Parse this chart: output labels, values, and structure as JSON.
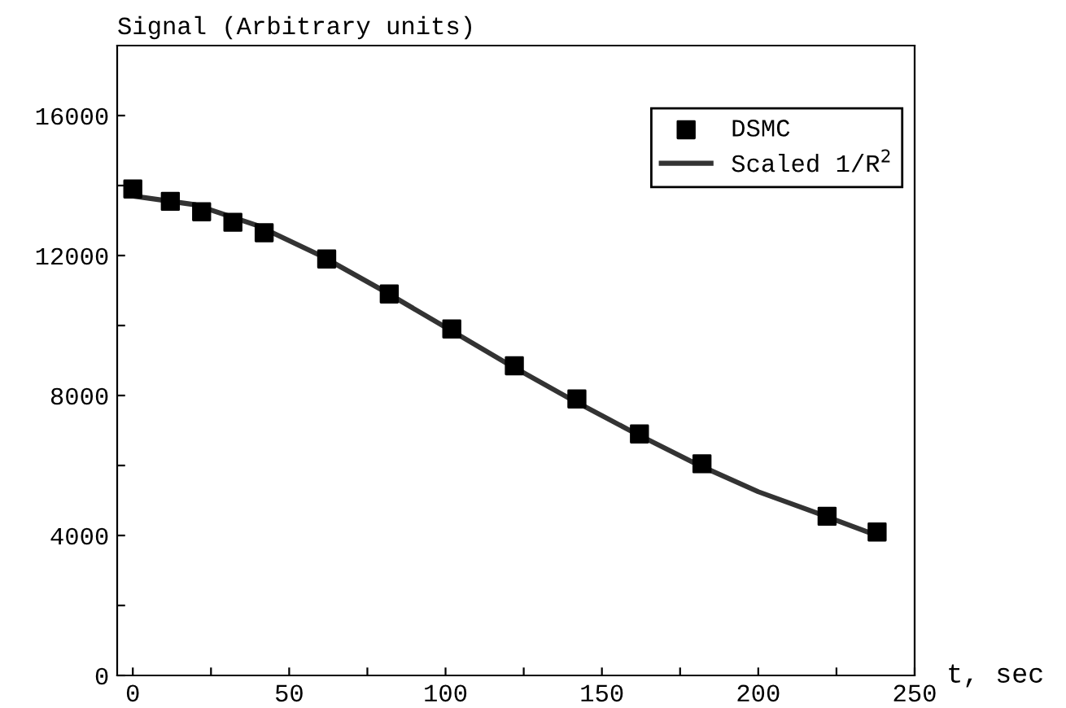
{
  "chart_data": {
    "type": "scatter",
    "xlabel": "t, sec",
    "ylabel": "Signal (Arbitrary units)",
    "series": [
      {
        "name": "DSMC",
        "color": "#000000",
        "marker": "square",
        "x": [
          0,
          12,
          22,
          32,
          42,
          62,
          82,
          102,
          122,
          142,
          162,
          182,
          222,
          238
        ],
        "values": [
          13900,
          13550,
          13250,
          12950,
          12650,
          11900,
          10900,
          9900,
          8850,
          7900,
          6900,
          6050,
          4550,
          4100
        ]
      },
      {
        "name": "Scaled 1/R$^{2}$",
        "type": "line",
        "color": "#333333",
        "marker": "none",
        "line_style": "solid",
        "x": [
          0,
          20,
          40,
          60,
          80,
          100,
          120,
          140,
          160,
          180,
          200,
          220,
          238
        ],
        "values": [
          13700,
          13450,
          12850,
          12000,
          11000,
          9950,
          8900,
          7900,
          6950,
          6050,
          5250,
          4600,
          4000
        ]
      }
    ],
    "xlim": [
      -5,
      250
    ],
    "ylim": [
      0,
      18000
    ],
    "xticks": [
      0,
      {
        "value": 25,
        "label": null
      },
      50,
      {
        "value": 75,
        "label": null
      },
      100,
      {
        "value": 125,
        "label": null
      },
      150,
      {
        "value": 175,
        "label": null
      },
      200,
      {
        "value": 225,
        "label": null
      },
      250
    ],
    "yticks": [
      0,
      {
        "value": 2000,
        "label": null
      },
      4000,
      {
        "value": 6000,
        "label": null
      },
      8000,
      {
        "value": 10000,
        "label": null
      },
      12000,
      {
        "value": 14000,
        "label": null
      },
      16000
    ],
    "grid": false,
    "legend": "top right"
  }
}
